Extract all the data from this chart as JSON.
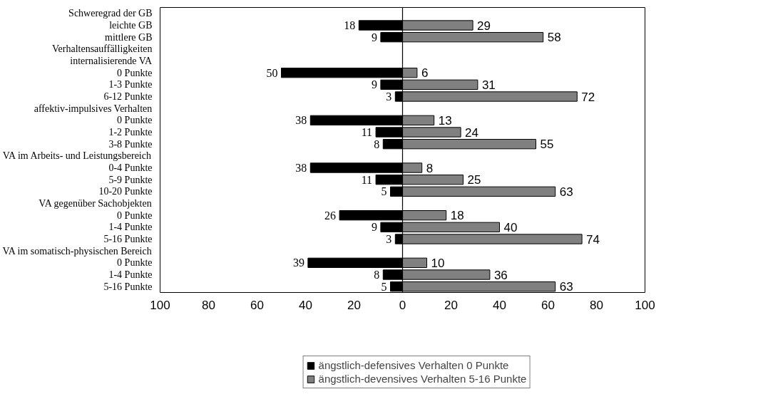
{
  "chart_data": {
    "type": "bar",
    "orientation": "horizontal",
    "categories": [
      "Schweregrad der GB",
      "leichte GB",
      "mittlere GB",
      "Verhaltensauffälligkeiten",
      "internalisierende VA",
      "0 Punkte",
      "1-3 Punkte",
      "6-12 Punkte",
      "affektiv-impulsives Verhalten",
      "0 Punkte",
      "1-2 Punkte",
      "3-8 Punkte",
      "VA im Arbeits- und Leistungsbereich",
      "0-4 Punkte",
      "5-9 Punkte",
      "10-20 Punkte",
      "VA gegenüber Sachobjekten",
      "0 Punkte",
      "1-4 Punkte",
      "5-16 Punkte",
      "VA im somatisch-physischen Bereich",
      "0 Punkte",
      "1-4 Punkte",
      "5-16 Punkte"
    ],
    "series": [
      {
        "name": "ängstlich-defensives Verhalten 0 Punkte",
        "color": "#000000",
        "values": [
          null,
          18,
          9,
          null,
          null,
          50,
          9,
          3,
          null,
          38,
          11,
          8,
          null,
          38,
          11,
          5,
          null,
          26,
          9,
          3,
          null,
          39,
          8,
          5
        ],
        "base": [
          null,
          -18,
          -9,
          null,
          null,
          -50,
          -9,
          -3,
          null,
          -38,
          -11,
          -8,
          null,
          -38,
          -11,
          -5,
          null,
          -26,
          -9,
          -3,
          null,
          -39,
          -8,
          -5
        ],
        "value_labels": [
          null,
          "18",
          "9",
          null,
          null,
          "50",
          "9",
          "3",
          null,
          "38",
          "11",
          "8",
          null,
          "38",
          "11",
          "5",
          null,
          "26",
          "9",
          "3",
          null,
          "39",
          "8",
          "5"
        ]
      },
      {
        "name": "ängstlich-devensives Verhalten 5-16 Punkte",
        "color": "#808080",
        "values": [
          null,
          29,
          58,
          null,
          null,
          6,
          31,
          72,
          null,
          13,
          24,
          55,
          null,
          8,
          25,
          63,
          null,
          18,
          40,
          74,
          null,
          10,
          36,
          63
        ],
        "value_labels": [
          null,
          "29",
          "58",
          null,
          null,
          "6",
          "31",
          "72",
          null,
          "13",
          "24",
          "55",
          null,
          "8",
          "25",
          "63",
          null,
          "18",
          "40",
          "74",
          null,
          "10",
          "36",
          "63"
        ]
      }
    ],
    "xlim": [
      -100,
      100
    ],
    "xticks": [
      {
        "value": -100,
        "label": "100"
      },
      {
        "value": -80,
        "label": "80"
      },
      {
        "value": -60,
        "label": "60"
      },
      {
        "value": -40,
        "label": "40"
      },
      {
        "value": -20,
        "label": "20"
      },
      0,
      20,
      40,
      60,
      80,
      100
    ],
    "ref_lines": [
      {
        "axis": "x",
        "value": 0,
        "color": "#000000"
      }
    ],
    "grid": false,
    "stacked": true,
    "legend": "bottom"
  }
}
